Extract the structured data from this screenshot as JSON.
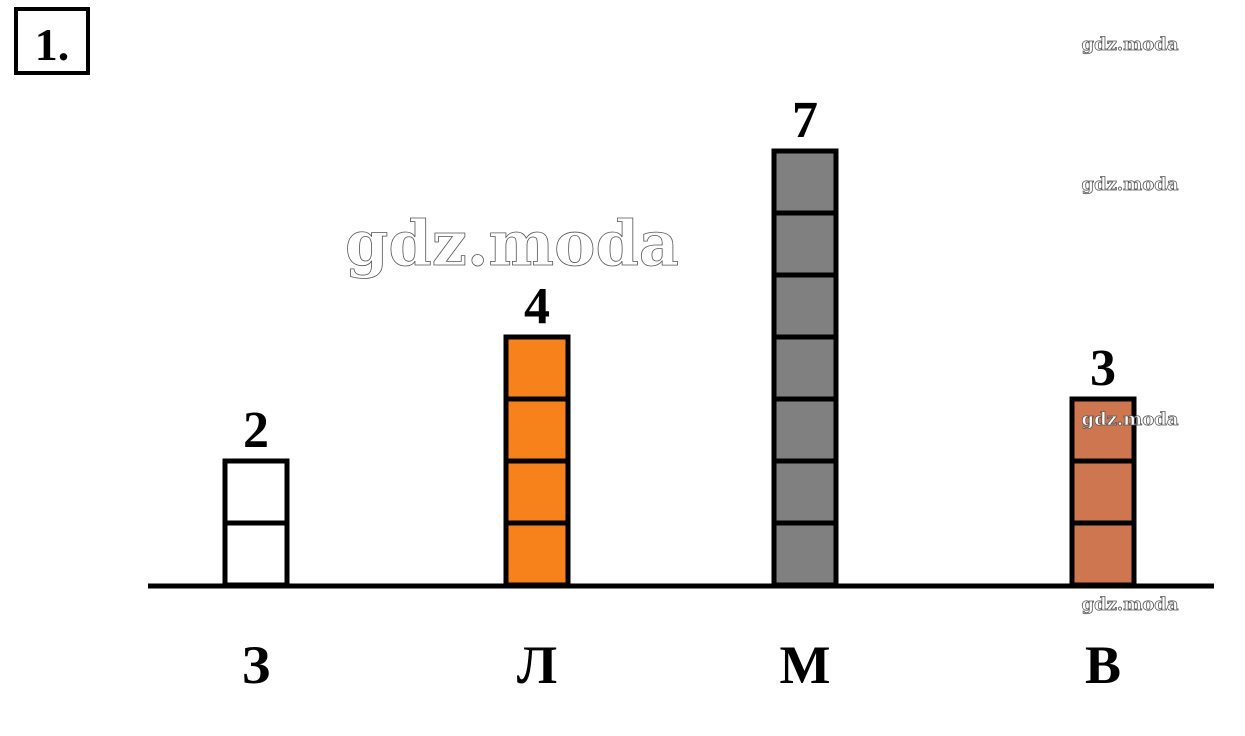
{
  "chart_data": {
    "type": "bar",
    "task_number": "1.",
    "categories": [
      "З",
      "Л",
      "М",
      "В"
    ],
    "values": [
      2,
      4,
      7,
      3
    ],
    "colors": [
      "#ffffff",
      "#f7821b",
      "#808080",
      "#cd7650"
    ]
  },
  "watermarks": [
    "gdz.moda",
    "gdz.moda",
    "gdz.moda",
    "gdz.moda",
    "gdz.moda"
  ]
}
